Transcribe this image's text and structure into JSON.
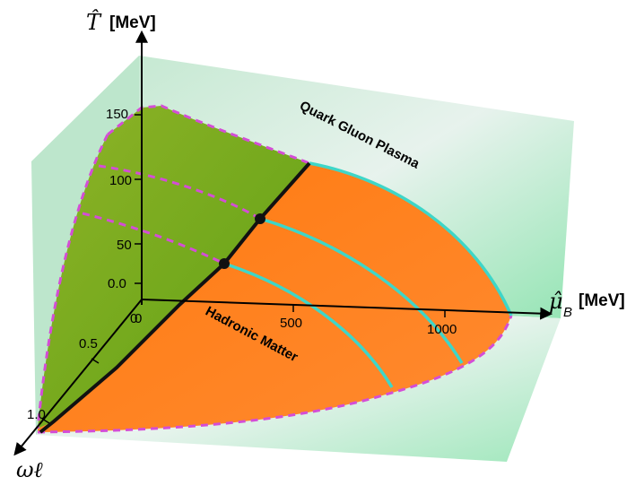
{
  "colors": {
    "back_plane": "#bfe8cf",
    "hadronic_region": "#ff7f1a",
    "qgp_region": "#74a81e",
    "crossover_line": "#111111",
    "first_order_lines": "#3ed6c8",
    "dashed_contours": "#d44dd6",
    "axes": "#000000"
  },
  "axes": {
    "t": {
      "symbol": "T̂",
      "unit": "[MeV]",
      "ticks": [
        "0.0",
        "50",
        "100",
        "150"
      ]
    },
    "mu": {
      "symbol": "μ̂",
      "subscript": "B",
      "unit": "[MeV]",
      "ticks": [
        "0",
        "500",
        "1000"
      ]
    },
    "omega": {
      "symbol": "ωℓ",
      "ticks": [
        "0",
        "0.5",
        "1.0"
      ]
    }
  },
  "regions": {
    "qgp": "Quark Gluon Plasma",
    "hadronic": "Hadronic Matter"
  }
}
